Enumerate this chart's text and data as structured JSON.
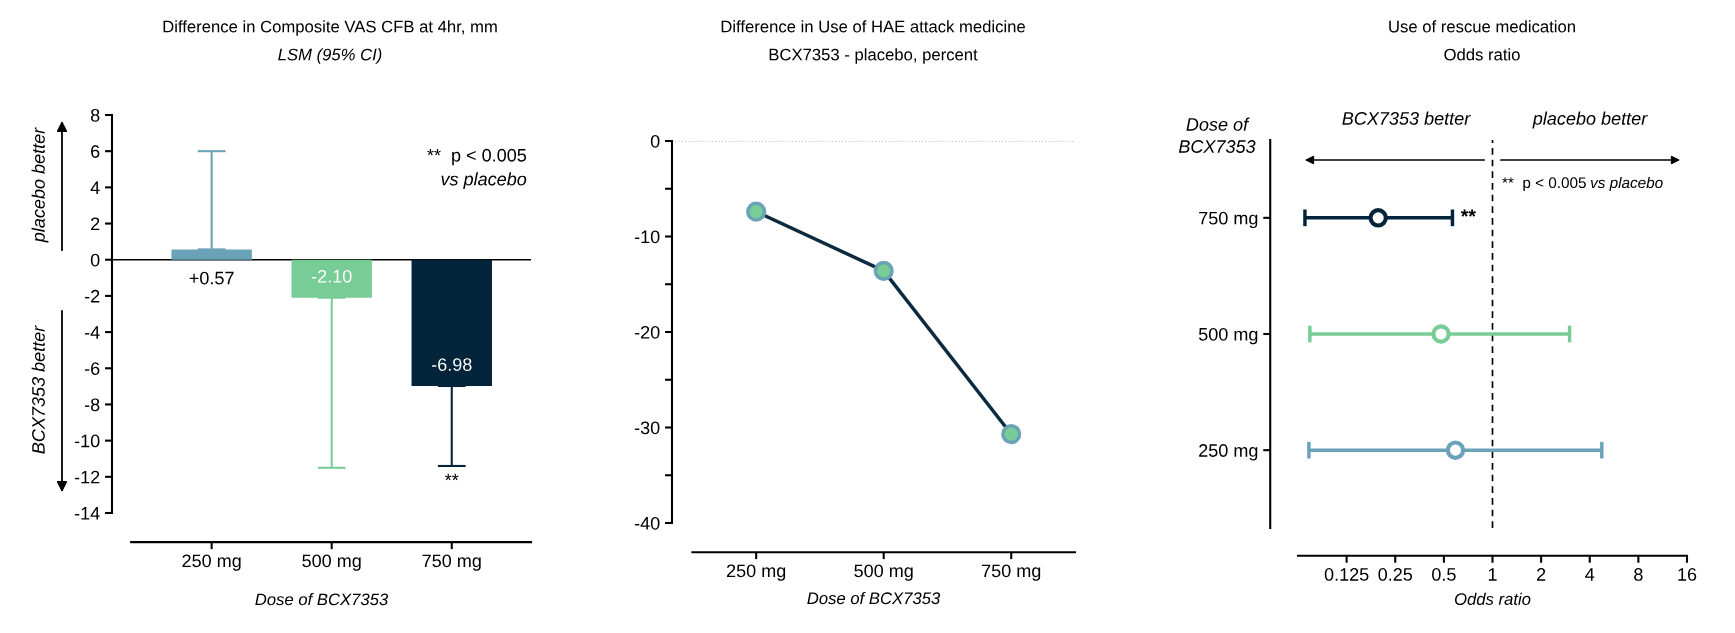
{
  "chart_data": [
    {
      "type": "bar",
      "title": "Difference in Composite VAS CFB at 4hr, mm",
      "subtitle": "LSM (95% CI)",
      "xlabel": "Dose of BCX7353",
      "categories": [
        "250 mg",
        "500 mg",
        "750 mg"
      ],
      "values": [
        0.57,
        -2.1,
        -6.98
      ],
      "colors": [
        "#6aa3b8",
        "#78cc96",
        "#04243b"
      ],
      "errors": [
        [
          0.57,
          6.0
        ],
        [
          -11.5,
          -2.1
        ],
        [
          -11.4,
          -6.98
        ]
      ],
      "value_labels": [
        "+0.57",
        "-2.10",
        "-6.98"
      ],
      "ylim": [
        -14,
        8
      ],
      "yticks": [
        -14,
        -12,
        -10,
        -8,
        -6,
        -4,
        -2,
        0,
        2,
        4,
        6,
        8
      ],
      "ref_lines": [
        {
          "axis": "y",
          "value": 0,
          "color": "#000000",
          "line_style": "solid"
        }
      ],
      "annotations": [
        "**  p < 0.005",
        "vs placebo",
        {
          "text": "**",
          "x": "750 mg",
          "y": -11.4
        },
        "placebo better",
        "BCX7353 better"
      ]
    },
    {
      "type": "line",
      "title": "Difference in Use of HAE attack medicine",
      "subtitle": "BCX7353 - placebo, percent",
      "xlabel": "Dose of BCX7353",
      "categories": [
        "250 mg",
        "500 mg",
        "750 mg"
      ],
      "series": [
        {
          "color": "#0d2b40",
          "colors": [
            "#78cc96",
            "#78cc96",
            "#78cc96"
          ],
          "values": [
            -7.4,
            -13.6,
            -30.7
          ]
        }
      ],
      "marker": "circle",
      "line_style": "solid",
      "ylim": [
        -40,
        0
      ],
      "yticks": [
        -40,
        {
          "value": -35,
          "label": null
        },
        -30,
        {
          "value": -25,
          "label": null
        },
        -20,
        {
          "value": -15,
          "label": null
        },
        -10,
        {
          "value": -5,
          "label": null
        },
        0
      ],
      "ref_lines": [
        {
          "axis": "y",
          "value": 0,
          "color": "#888888",
          "line_style": "dotted"
        }
      ]
    },
    {
      "type": "scatter",
      "orientation": "horizontal",
      "title": "Use of rescue medication",
      "subtitle": "Odds ratio",
      "xlabel": "Odds ratio",
      "ylabel": "Dose of BCX7353",
      "categories": [
        "750 mg",
        "500 mg",
        "250 mg"
      ],
      "values": [
        0.196,
        0.48,
        0.59
      ],
      "colors": [
        "#04243b",
        "#78cc96",
        "#6aa3b8"
      ],
      "errors": [
        [
          0.069,
          0.565
        ],
        [
          0.074,
          3.0
        ],
        [
          0.073,
          4.75
        ]
      ],
      "marker": "circle",
      "log": "x",
      "xlim": [
        0.0625,
        16
      ],
      "xticks": [
        0.125,
        0.25,
        0.5,
        1,
        2,
        4,
        8,
        16
      ],
      "ref_lines": [
        {
          "axis": "x",
          "value": 1,
          "color": "#000000",
          "line_style": "dashed"
        }
      ],
      "annotations": [
        "BCX7353 better",
        "placebo better",
        "**  p < 0.005",
        "vs placebo",
        "**"
      ]
    }
  ]
}
